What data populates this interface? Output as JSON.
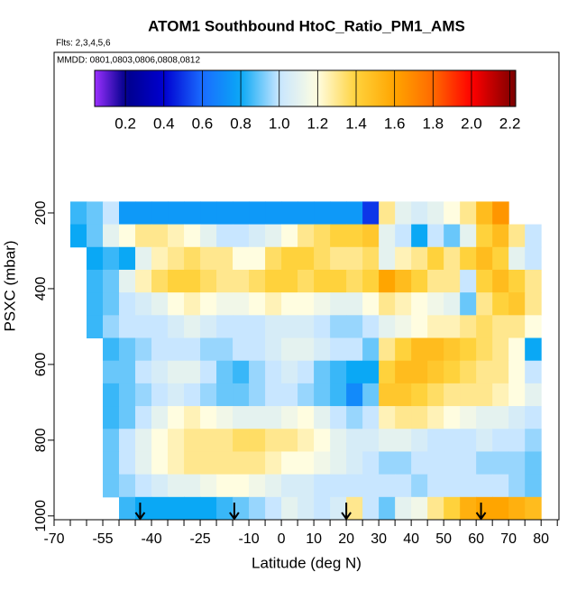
{
  "chart_data": {
    "type": "heatmap",
    "title": "ATOM1 Southbound HtoC_Ratio_PM1_AMS",
    "subtitle": "Flts: 2,3,4,5,6",
    "annotation": "MMDD: 0801,0803,0806,0808,0812",
    "x_label": "Latitude (deg N)",
    "y_label": "PSXC (mbar)",
    "xlim": [
      -70,
      85.5
    ],
    "ylim": [
      1010,
      -224
    ],
    "xticks": [
      -70,
      -55,
      -40,
      -25,
      -10,
      0,
      10,
      20,
      30,
      40,
      50,
      60,
      70,
      80
    ],
    "xminor_ticks": [
      -65,
      -60,
      -50,
      -45,
      -35,
      -30,
      -20,
      -15,
      -5,
      5,
      15,
      25,
      35,
      45,
      55,
      65,
      75,
      85
    ],
    "yticks": [
      200,
      400,
      600,
      800,
      1000
    ],
    "zlim": [
      0.04,
      2.23
    ],
    "zticks": [
      0.2,
      0.4,
      0.6,
      0.8,
      {
        "value": 1,
        "label": "1.0"
      },
      1.2,
      1.4,
      1.6,
      1.8,
      {
        "value": 2,
        "label": "2.0"
      },
      2.2
    ],
    "colorscale": [
      [
        0.04,
        "#9b30ff"
      ],
      [
        0.2,
        "#00008b"
      ],
      [
        0.4,
        "#0000d0"
      ],
      [
        0.6,
        "#1a6cff"
      ],
      [
        0.8,
        "#0aa8f5"
      ],
      [
        1.0,
        "#c8e6ff"
      ],
      [
        1.2,
        "#fffde0"
      ],
      [
        1.4,
        "#ffd23c"
      ],
      [
        1.6,
        "#ffa500"
      ],
      [
        1.8,
        "#ff6a00"
      ],
      [
        2.0,
        "#ff0000"
      ],
      [
        2.23,
        "#7a0000"
      ]
    ],
    "arrows": [
      -43.5,
      -14.5,
      20,
      61.5
    ],
    "x_edges": [
      -65,
      -60,
      -55,
      -50,
      -45,
      -40,
      -35,
      -30,
      -25,
      -20,
      -15,
      -10,
      -5,
      0,
      5,
      10,
      15,
      20,
      25,
      30,
      35,
      40,
      45,
      50,
      55,
      60,
      65,
      70,
      75,
      80
    ],
    "y_edges": [
      170,
      230,
      290,
      350,
      410,
      470,
      530,
      590,
      650,
      710,
      770,
      830,
      890,
      950,
      1010
    ],
    "z": [
      [
        0.85,
        0.9,
        1.0,
        0.75,
        0.75,
        0.75,
        0.75,
        0.75,
        0.75,
        0.75,
        0.75,
        0.75,
        0.75,
        0.75,
        0.75,
        0.75,
        0.75,
        0.75,
        0.5,
        1.3,
        1.1,
        1.05,
        1.1,
        1.2,
        1.3,
        1.5,
        1.65,
        null,
        null
      ],
      [
        0.8,
        0.9,
        1.1,
        1.2,
        1.3,
        1.3,
        1.25,
        1.2,
        1.1,
        1.0,
        1.0,
        1.05,
        1.1,
        1.2,
        1.3,
        1.35,
        1.4,
        1.4,
        1.45,
        1.1,
        1.0,
        0.8,
        1.0,
        0.9,
        1.1,
        1.4,
        1.5,
        1.3,
        1.0
      ],
      [
        null,
        0.8,
        0.85,
        0.8,
        1.1,
        1.25,
        1.3,
        1.35,
        1.3,
        1.3,
        1.2,
        1.2,
        1.35,
        1.4,
        1.4,
        1.35,
        1.3,
        1.3,
        1.35,
        1.1,
        1.25,
        1.3,
        1.4,
        1.3,
        1.4,
        1.5,
        1.4,
        1.1,
        1.0
      ],
      [
        null,
        0.85,
        0.9,
        1.1,
        1.25,
        1.35,
        1.4,
        1.4,
        1.35,
        1.3,
        1.3,
        1.35,
        1.4,
        1.4,
        1.35,
        1.4,
        1.4,
        1.35,
        1.4,
        1.6,
        1.5,
        1.4,
        1.3,
        1.3,
        1.0,
        1.4,
        1.5,
        1.4,
        1.3
      ],
      [
        null,
        0.85,
        0.9,
        1.0,
        1.05,
        1.1,
        1.2,
        1.25,
        1.2,
        1.15,
        1.15,
        1.2,
        1.25,
        1.2,
        1.2,
        1.15,
        1.1,
        1.1,
        1.2,
        1.3,
        1.25,
        1.2,
        1.15,
        1.1,
        0.9,
        1.3,
        1.4,
        1.45,
        1.3
      ],
      [
        null,
        0.85,
        0.95,
        1.0,
        1.0,
        1.0,
        1.05,
        1.1,
        1.05,
        1.0,
        1.0,
        1.0,
        1.05,
        1.05,
        1.05,
        1.0,
        0.95,
        0.95,
        1.0,
        1.1,
        1.15,
        1.2,
        1.25,
        1.25,
        1.3,
        1.35,
        1.3,
        1.3,
        1.2
      ],
      [
        null,
        null,
        0.85,
        0.9,
        0.95,
        1.0,
        1.0,
        1.0,
        0.95,
        0.95,
        1.0,
        1.0,
        1.05,
        1.1,
        1.1,
        1.05,
        1.0,
        1.0,
        0.9,
        1.3,
        1.4,
        1.5,
        1.5,
        1.45,
        1.4,
        1.35,
        1.3,
        1.2,
        0.8
      ],
      [
        null,
        null,
        0.9,
        0.9,
        1.0,
        1.05,
        1.1,
        1.1,
        1.0,
        0.9,
        0.85,
        0.95,
        1.0,
        1.05,
        1.0,
        0.9,
        0.85,
        0.8,
        0.8,
        1.4,
        1.5,
        1.5,
        1.45,
        1.4,
        1.35,
        1.3,
        1.3,
        1.2,
        1.0
      ],
      [
        null,
        null,
        0.85,
        0.9,
        0.95,
        1.0,
        1.05,
        1.0,
        0.95,
        0.9,
        0.9,
        0.95,
        1.0,
        1.0,
        0.95,
        0.9,
        0.85,
        0.7,
        0.9,
        1.45,
        1.45,
        1.4,
        1.35,
        1.3,
        1.3,
        1.3,
        1.25,
        1.2,
        1.1
      ],
      [
        null,
        null,
        0.85,
        0.9,
        1.0,
        1.1,
        1.2,
        1.25,
        1.2,
        1.15,
        1.1,
        1.1,
        1.1,
        1.15,
        1.2,
        1.1,
        1.0,
        0.95,
        1.0,
        1.25,
        1.3,
        1.3,
        1.25,
        1.2,
        1.15,
        1.1,
        1.1,
        1.05,
        1.0
      ],
      [
        null,
        null,
        0.9,
        1.0,
        1.1,
        1.2,
        1.25,
        1.3,
        1.3,
        1.3,
        1.35,
        1.35,
        1.3,
        1.3,
        1.25,
        1.2,
        1.1,
        1.05,
        1.05,
        1.1,
        1.1,
        1.05,
        1.0,
        1.0,
        1.0,
        1.05,
        1.0,
        1.0,
        0.95
      ],
      [
        null,
        null,
        0.9,
        1.0,
        1.1,
        1.2,
        1.25,
        1.3,
        1.3,
        1.3,
        1.3,
        1.3,
        1.25,
        1.2,
        1.2,
        1.15,
        1.1,
        1.05,
        1.0,
        0.95,
        0.95,
        1.0,
        1.0,
        1.0,
        1.0,
        0.95,
        0.95,
        0.95,
        0.9
      ],
      [
        null,
        null,
        0.9,
        0.95,
        1.0,
        1.05,
        1.1,
        1.1,
        1.15,
        1.2,
        1.2,
        1.15,
        1.1,
        1.05,
        1.05,
        1.0,
        1.0,
        1.0,
        1.0,
        1.0,
        1.0,
        0.95,
        1.0,
        1.0,
        1.0,
        1.0,
        1.0,
        0.95,
        0.9
      ],
      [
        null,
        null,
        null,
        0.85,
        0.8,
        0.8,
        0.8,
        0.8,
        0.8,
        0.85,
        0.9,
        0.95,
        1.0,
        1.1,
        1.05,
        1.0,
        1.05,
        1.3,
        1.0,
        0.9,
        1.1,
        1.15,
        1.3,
        1.4,
        1.55,
        1.6,
        1.6,
        1.55,
        1.5
      ]
    ]
  }
}
